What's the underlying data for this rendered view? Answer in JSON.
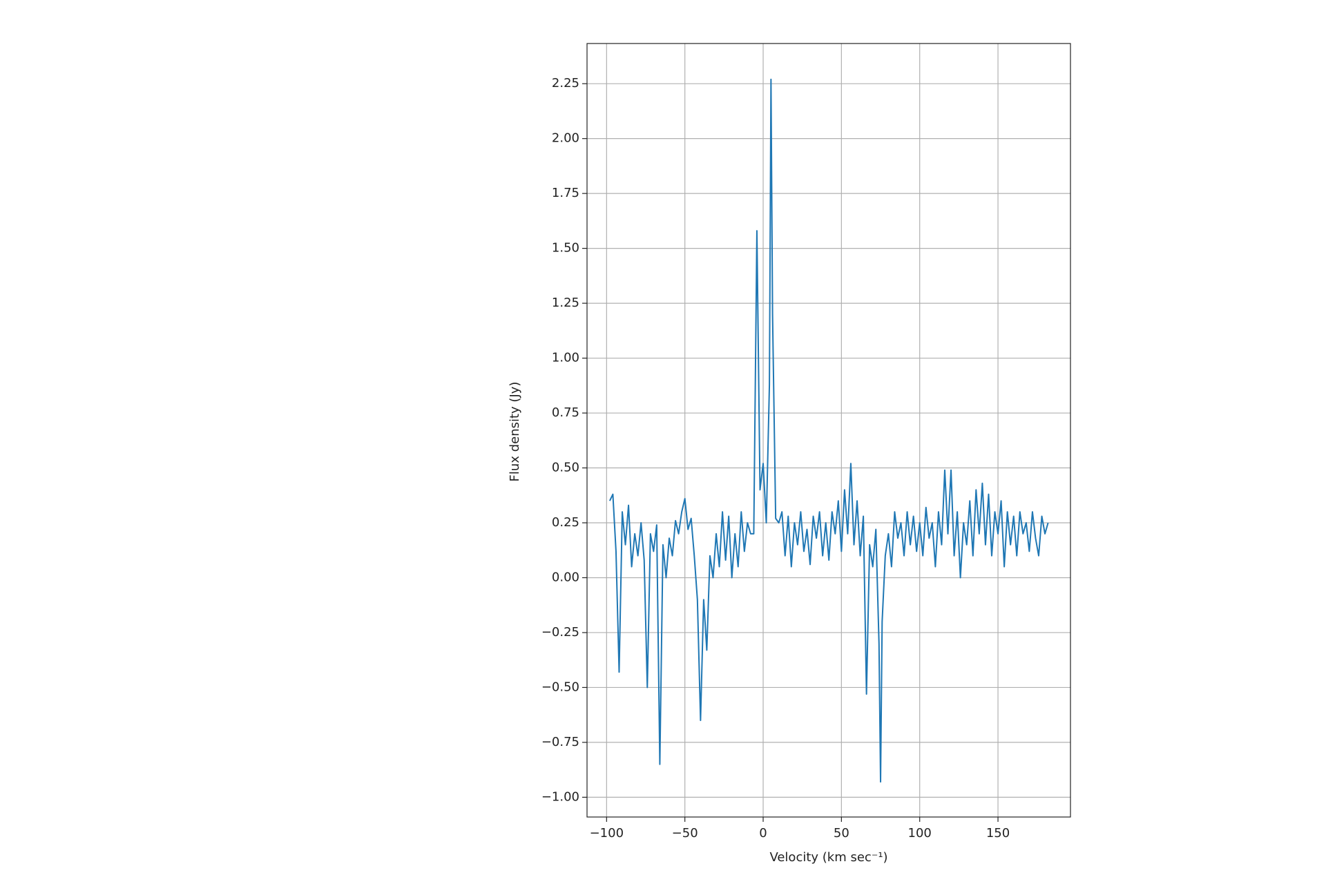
{
  "chart_data": {
    "type": "line",
    "xlabel": "Velocity (km sec⁻¹)",
    "ylabel": "Flux density (Jy)",
    "color": "#1f77b4",
    "grid": true,
    "xlim": [
      -112.5,
      196.3
    ],
    "ylim": [
      -1.09,
      2.433
    ],
    "xticks": [
      {
        "value": -100,
        "label": "−100"
      },
      {
        "value": -50,
        "label": "−50"
      },
      0,
      50,
      100,
      150
    ],
    "yticks": [
      {
        "value": -1,
        "label": "−1.00"
      },
      {
        "value": -0.75,
        "label": "−0.75"
      },
      {
        "value": -0.5,
        "label": "−0.50"
      },
      {
        "value": -0.25,
        "label": "−0.25"
      },
      {
        "value": 0,
        "label": "0.00"
      },
      0.25,
      {
        "value": 0.5,
        "label": "0.50"
      },
      0.75,
      {
        "value": 1,
        "label": "1.00"
      },
      1.25,
      {
        "value": 1.5,
        "label": "1.50"
      },
      1.75,
      {
        "value": 2,
        "label": "2.00"
      },
      2.25
    ],
    "x": [
      -98,
      -96,
      -94,
      -92,
      -90,
      -88,
      -86,
      -84,
      -82,
      -80,
      -78,
      -76,
      -74,
      -72,
      -70,
      -68,
      -66,
      -64,
      -62,
      -60,
      -58,
      -56,
      -54,
      -52,
      -50,
      -48,
      -46,
      -44,
      -42,
      -40,
      -38,
      -36,
      -34,
      -32,
      -30,
      -28,
      -26,
      -24,
      -22,
      -20,
      -18,
      -16,
      -14,
      -12,
      -10,
      -8,
      -6,
      -4,
      -2,
      0,
      2,
      4,
      5,
      6,
      8,
      10,
      12,
      14,
      16,
      18,
      20,
      22,
      24,
      26,
      28,
      30,
      32,
      34,
      36,
      38,
      40,
      42,
      44,
      46,
      48,
      50,
      52,
      54,
      56,
      58,
      60,
      62,
      64,
      66,
      68,
      70,
      72,
      74,
      75,
      76,
      78,
      80,
      82,
      84,
      86,
      88,
      90,
      92,
      94,
      96,
      98,
      100,
      102,
      104,
      106,
      108,
      110,
      112,
      114,
      116,
      118,
      120,
      122,
      124,
      126,
      128,
      130,
      132,
      134,
      136,
      138,
      140,
      142,
      144,
      146,
      148,
      150,
      152,
      154,
      156,
      158,
      160,
      162,
      164,
      166,
      168,
      170,
      172,
      174,
      176,
      178,
      180,
      182
    ],
    "values": [
      0.35,
      0.38,
      0.12,
      -0.43,
      0.3,
      0.15,
      0.33,
      0.05,
      0.2,
      0.1,
      0.25,
      0.08,
      -0.5,
      0.2,
      0.12,
      0.24,
      -0.85,
      0.15,
      0.0,
      0.18,
      0.1,
      0.26,
      0.2,
      0.3,
      0.36,
      0.22,
      0.27,
      0.1,
      -0.1,
      -0.65,
      -0.1,
      -0.33,
      0.1,
      0.0,
      0.2,
      0.05,
      0.3,
      0.08,
      0.28,
      0.0,
      0.2,
      0.05,
      0.3,
      0.12,
      0.25,
      0.2,
      0.2,
      1.58,
      0.4,
      0.52,
      0.25,
      0.88,
      2.27,
      1.2,
      0.27,
      0.25,
      0.3,
      0.1,
      0.28,
      0.05,
      0.25,
      0.15,
      0.3,
      0.12,
      0.22,
      0.06,
      0.28,
      0.18,
      0.3,
      0.1,
      0.25,
      0.08,
      0.3,
      0.2,
      0.35,
      0.12,
      0.4,
      0.2,
      0.52,
      0.15,
      0.35,
      0.1,
      0.28,
      -0.53,
      0.15,
      0.05,
      0.22,
      -0.3,
      -0.93,
      -0.2,
      0.1,
      0.2,
      0.05,
      0.3,
      0.18,
      0.25,
      0.1,
      0.3,
      0.15,
      0.28,
      0.12,
      0.25,
      0.1,
      0.32,
      0.18,
      0.25,
      0.05,
      0.3,
      0.15,
      0.49,
      0.2,
      0.49,
      0.1,
      0.3,
      0.0,
      0.25,
      0.15,
      0.35,
      0.1,
      0.4,
      0.2,
      0.43,
      0.15,
      0.38,
      0.1,
      0.3,
      0.2,
      0.35,
      0.05,
      0.3,
      0.15,
      0.28,
      0.1,
      0.3,
      0.2,
      0.25,
      0.12,
      0.3,
      0.18,
      0.1,
      0.28,
      0.2,
      0.25
    ]
  }
}
